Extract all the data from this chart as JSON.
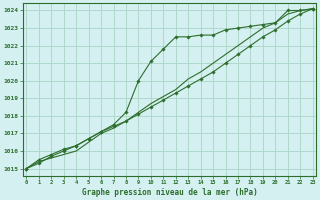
{
  "title": "Graphe pression niveau de la mer (hPa)",
  "bg_color": "#d4f0f0",
  "grid_color": "#b0d8cc",
  "line_color": "#2d6e2d",
  "x_ticks": [
    0,
    1,
    2,
    3,
    4,
    5,
    6,
    7,
    8,
    9,
    10,
    11,
    12,
    13,
    14,
    15,
    16,
    17,
    18,
    19,
    20,
    21,
    22,
    23
  ],
  "y_ticks": [
    1015,
    1016,
    1017,
    1018,
    1019,
    1020,
    1021,
    1022,
    1023,
    1024
  ],
  "ylim": [
    1014.6,
    1024.4
  ],
  "xlim": [
    -0.3,
    23.3
  ],
  "series1": [
    1015.0,
    1015.5,
    1015.8,
    1016.1,
    1016.3,
    1016.7,
    1017.1,
    1017.5,
    1018.2,
    1020.0,
    1021.1,
    1021.8,
    1022.5,
    1022.5,
    1022.6,
    1022.6,
    1022.9,
    1023.0,
    1023.1,
    1023.2,
    1023.3,
    1024.0,
    1024.0,
    1024.1
  ],
  "series2": [
    1015.0,
    1015.4,
    1015.6,
    1015.8,
    1016.0,
    1016.5,
    1017.0,
    1017.3,
    1017.7,
    1018.2,
    1018.7,
    1019.1,
    1019.5,
    1020.1,
    1020.5,
    1021.0,
    1021.5,
    1022.0,
    1022.5,
    1023.0,
    1023.3,
    1023.8,
    1024.0,
    1024.1
  ],
  "series3": [
    1015.0,
    1015.3,
    1015.7,
    1016.0,
    1016.3,
    1016.7,
    1017.1,
    1017.4,
    1017.7,
    1018.1,
    1018.5,
    1018.9,
    1019.3,
    1019.7,
    1020.1,
    1020.5,
    1021.0,
    1021.5,
    1022.0,
    1022.5,
    1022.9,
    1023.4,
    1023.8,
    1024.1
  ]
}
